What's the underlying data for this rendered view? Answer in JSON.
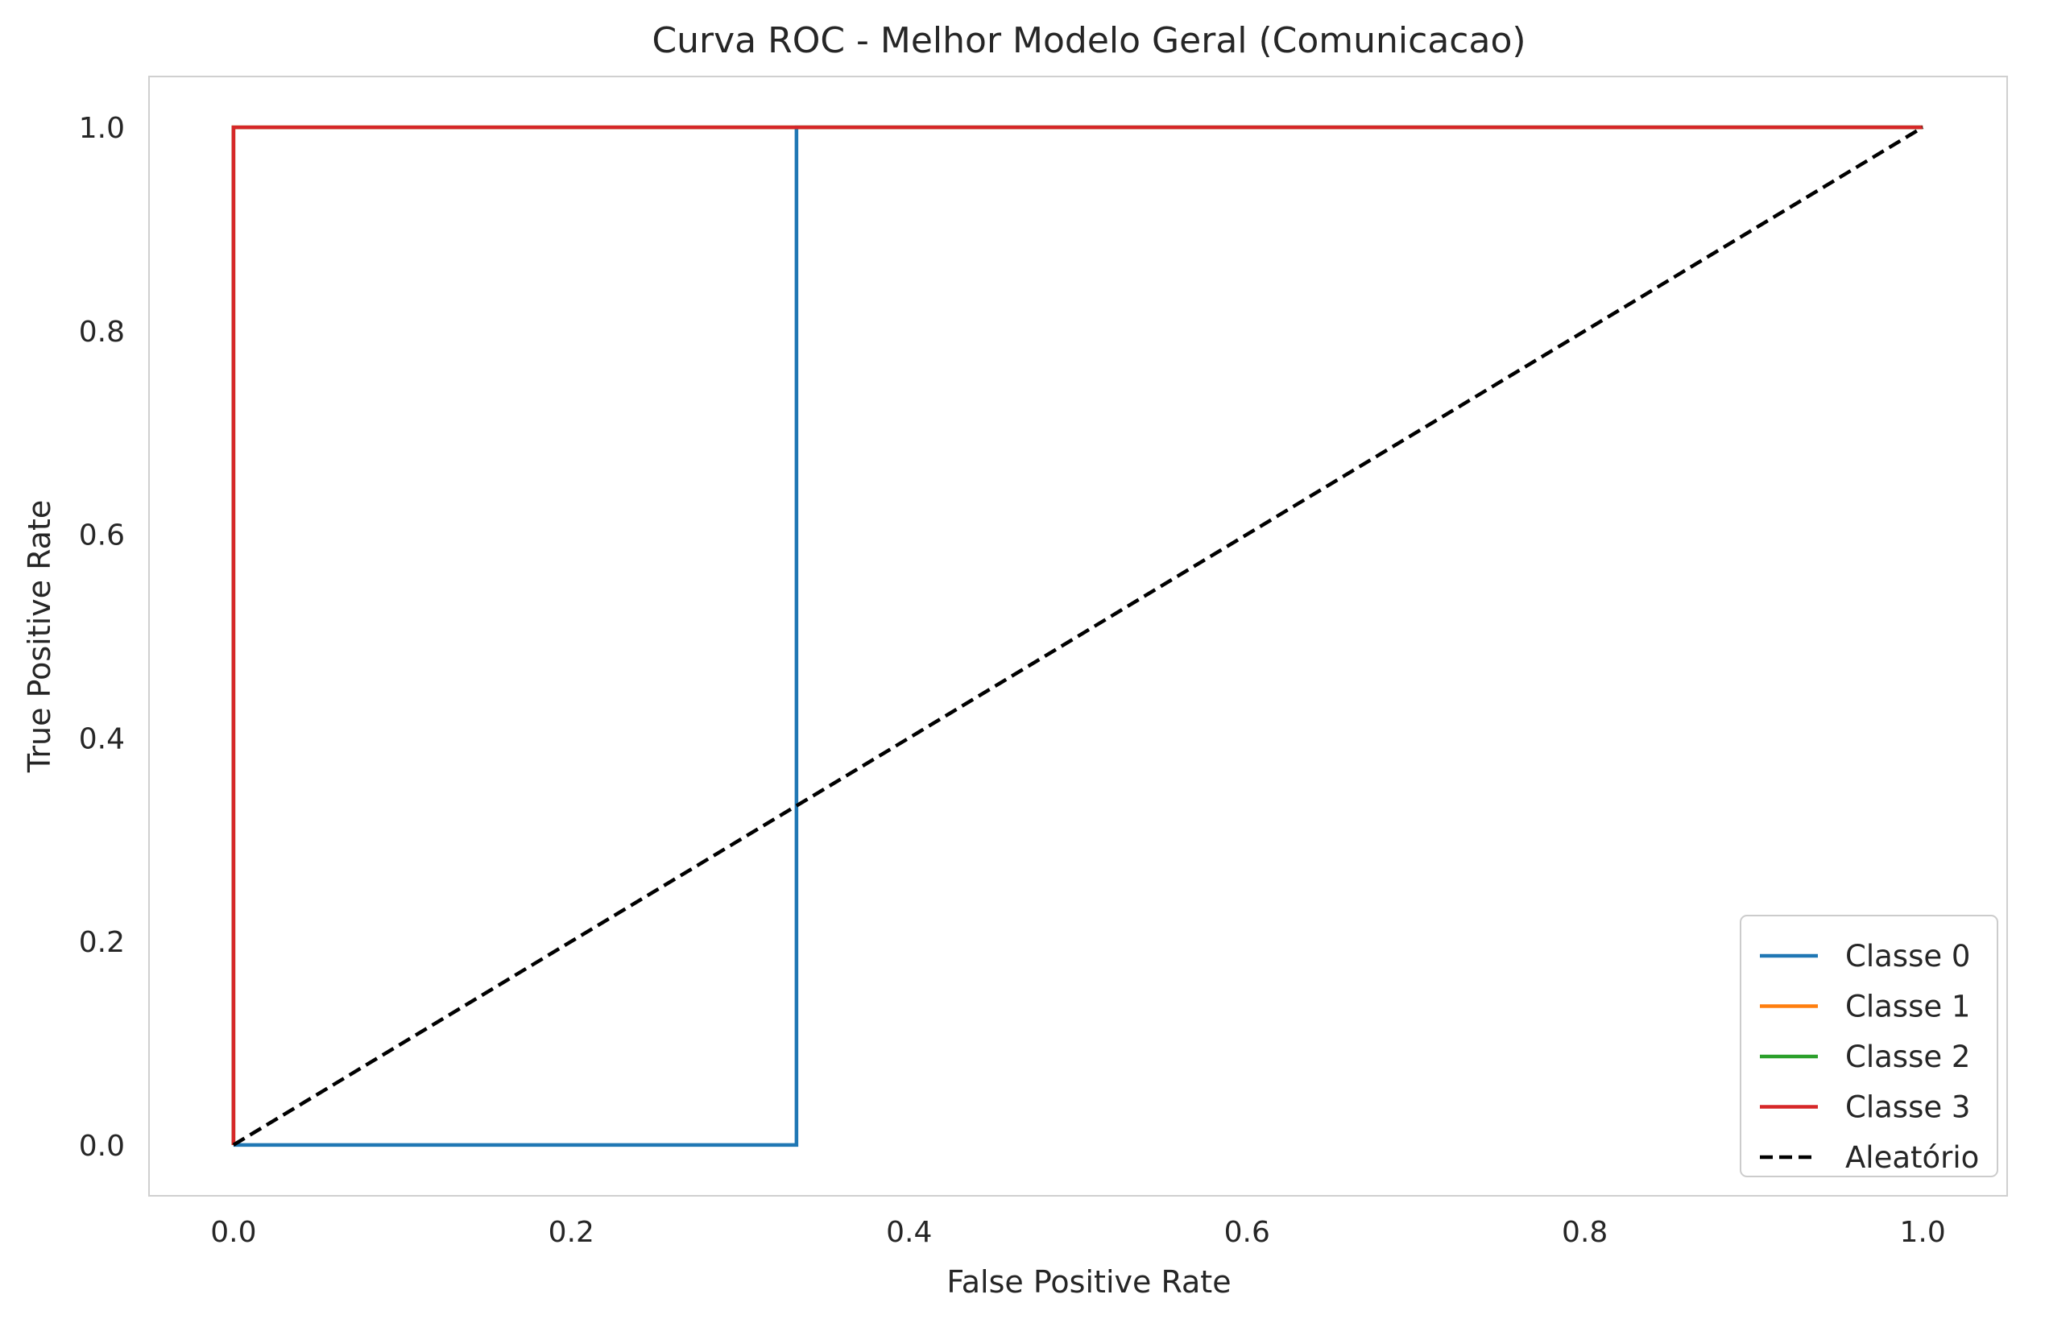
{
  "chart_data": {
    "type": "line",
    "title": "Curva ROC - Melhor Modelo Geral (Comunicacao)",
    "xlabel": "False Positive Rate",
    "ylabel": "True Positive Rate",
    "xlim": [
      -0.05,
      1.05
    ],
    "ylim": [
      -0.05,
      1.05
    ],
    "grid": false,
    "legend_position": "lower-right",
    "x_ticks": [
      "0.0",
      "0.2",
      "0.4",
      "0.6",
      "0.8",
      "1.0"
    ],
    "y_ticks": [
      "0.0",
      "0.2",
      "0.4",
      "0.6",
      "0.8",
      "1.0"
    ],
    "series": [
      {
        "name": "Classe 0",
        "color": "#1f77b4",
        "dash": "solid",
        "x": [
          0.0,
          0.3333,
          0.3333,
          1.0
        ],
        "y": [
          0.0,
          0.0,
          1.0,
          1.0
        ]
      },
      {
        "name": "Classe 1",
        "color": "#ff7f0e",
        "dash": "solid",
        "x": [
          0.0,
          0.0,
          1.0
        ],
        "y": [
          0.0,
          1.0,
          1.0
        ]
      },
      {
        "name": "Classe 2",
        "color": "#2ca02c",
        "dash": "solid",
        "x": [
          0.0,
          0.0,
          1.0
        ],
        "y": [
          0.0,
          1.0,
          1.0
        ]
      },
      {
        "name": "Classe 3",
        "color": "#d62728",
        "dash": "solid",
        "x": [
          0.0,
          0.0,
          1.0
        ],
        "y": [
          0.0,
          1.0,
          1.0
        ]
      },
      {
        "name": "Aleatório",
        "color": "#000000",
        "dash": "dashed",
        "x": [
          0.0,
          1.0
        ],
        "y": [
          0.0,
          1.0
        ]
      }
    ]
  }
}
